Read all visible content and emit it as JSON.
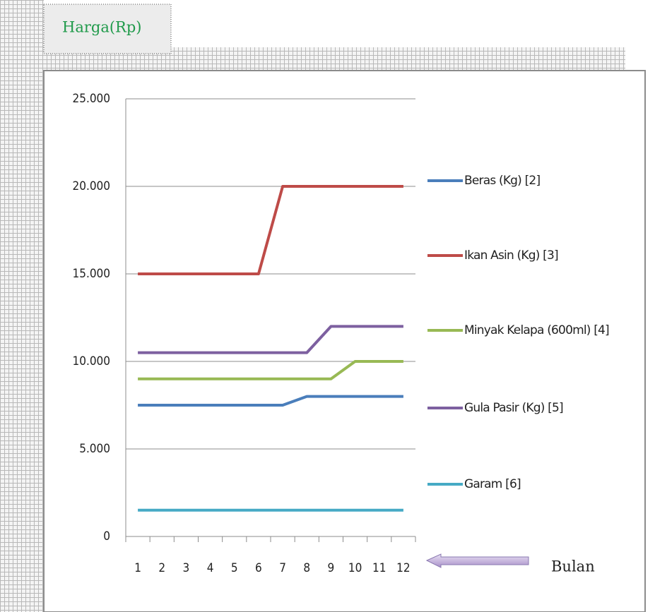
{
  "chart_data": {
    "type": "line",
    "y_label": "Harga(Rp)",
    "x_label": "Bulan",
    "categories": [
      "1",
      "2",
      "3",
      "4",
      "5",
      "6",
      "7",
      "8",
      "9",
      "10",
      "11",
      "12"
    ],
    "series": [
      {
        "name": "Beras (Kg) [2]",
        "color": "#4a7ebb",
        "values": [
          7500,
          7500,
          7500,
          7500,
          7500,
          7500,
          7500,
          8000,
          8000,
          8000,
          8000,
          8000
        ]
      },
      {
        "name": "Ikan Asin (Kg) [3]",
        "color": "#be4b48",
        "values": [
          15000,
          15000,
          15000,
          15000,
          15000,
          15000,
          20000,
          20000,
          20000,
          20000,
          20000,
          20000
        ]
      },
      {
        "name": "Minyak Kelapa (600ml) [4]",
        "color": "#98b954",
        "values": [
          9000,
          9000,
          9000,
          9000,
          9000,
          9000,
          9000,
          9000,
          9000,
          10000,
          10000,
          10000
        ]
      },
      {
        "name": "Gula Pasir (Kg) [5]",
        "color": "#7d60a0",
        "values": [
          10500,
          10500,
          10500,
          10500,
          10500,
          10500,
          10500,
          10500,
          12000,
          12000,
          12000,
          12000
        ]
      },
      {
        "name": "Garam [6]",
        "color": "#46aac5",
        "values": [
          1500,
          1500,
          1500,
          1500,
          1500,
          1500,
          1500,
          1500,
          1500,
          1500,
          1500,
          1500
        ]
      }
    ],
    "ylim": [
      0,
      25000
    ],
    "yticks": [
      0,
      {
        "value": 5000,
        "label": "5.000"
      },
      {
        "value": 10000,
        "label": "10.000"
      },
      {
        "value": 15000,
        "label": "15.000"
      },
      {
        "value": 20000,
        "label": "20.000"
      },
      {
        "value": 25000,
        "label": "25.000"
      }
    ],
    "grid": true,
    "legend": "right"
  }
}
